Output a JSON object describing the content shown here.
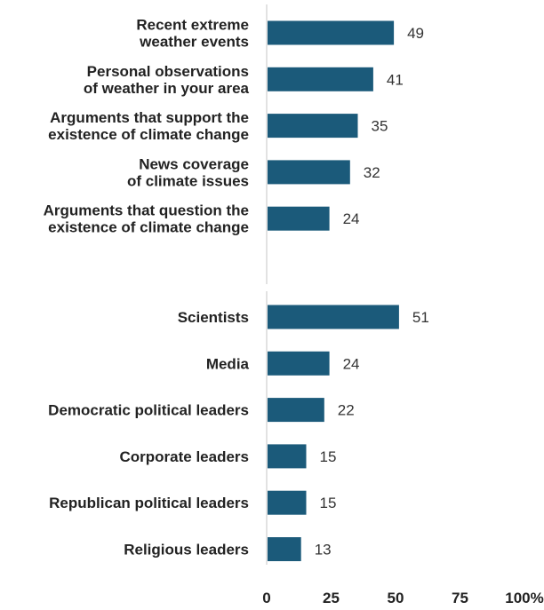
{
  "chart_data": {
    "type": "bar",
    "orientation": "horizontal",
    "groups": [
      {
        "categories": [
          [
            "Recent extreme",
            "weather events"
          ],
          [
            "Personal observations",
            "of weather  in your area"
          ],
          [
            "Arguments that support the",
            "existence of climate change"
          ],
          [
            "News coverage",
            "of climate issues"
          ],
          [
            "Arguments that question the",
            "existence of climate change"
          ]
        ],
        "values": [
          49,
          41,
          35,
          32,
          24
        ]
      },
      {
        "categories": [
          [
            "Scientists"
          ],
          [
            "Media"
          ],
          [
            "Democratic political leaders"
          ],
          [
            "Corporate leaders"
          ],
          [
            "Republican political leaders"
          ],
          [
            "Religious leaders"
          ]
        ],
        "values": [
          51,
          24,
          22,
          15,
          15,
          13
        ]
      }
    ],
    "xlim": [
      0,
      100
    ],
    "xticks": [
      "0",
      "25",
      "50",
      "75",
      "100%"
    ],
    "bar_color": "#1b5a7a",
    "grid": false
  }
}
